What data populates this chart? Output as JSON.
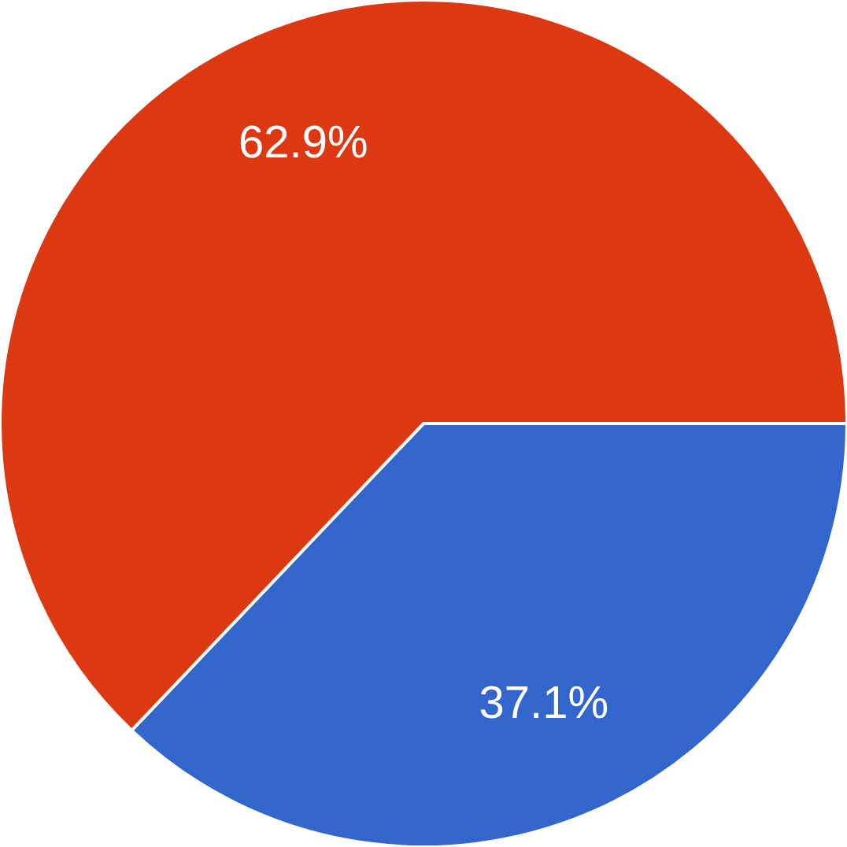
{
  "chart_data": {
    "type": "pie",
    "categories": [
      null,
      null
    ],
    "values": [
      37.1,
      62.9
    ],
    "colors": [
      "#3366cc",
      "#dc3912"
    ],
    "value_labels": [
      "37.1%",
      "62.9%"
    ]
  }
}
